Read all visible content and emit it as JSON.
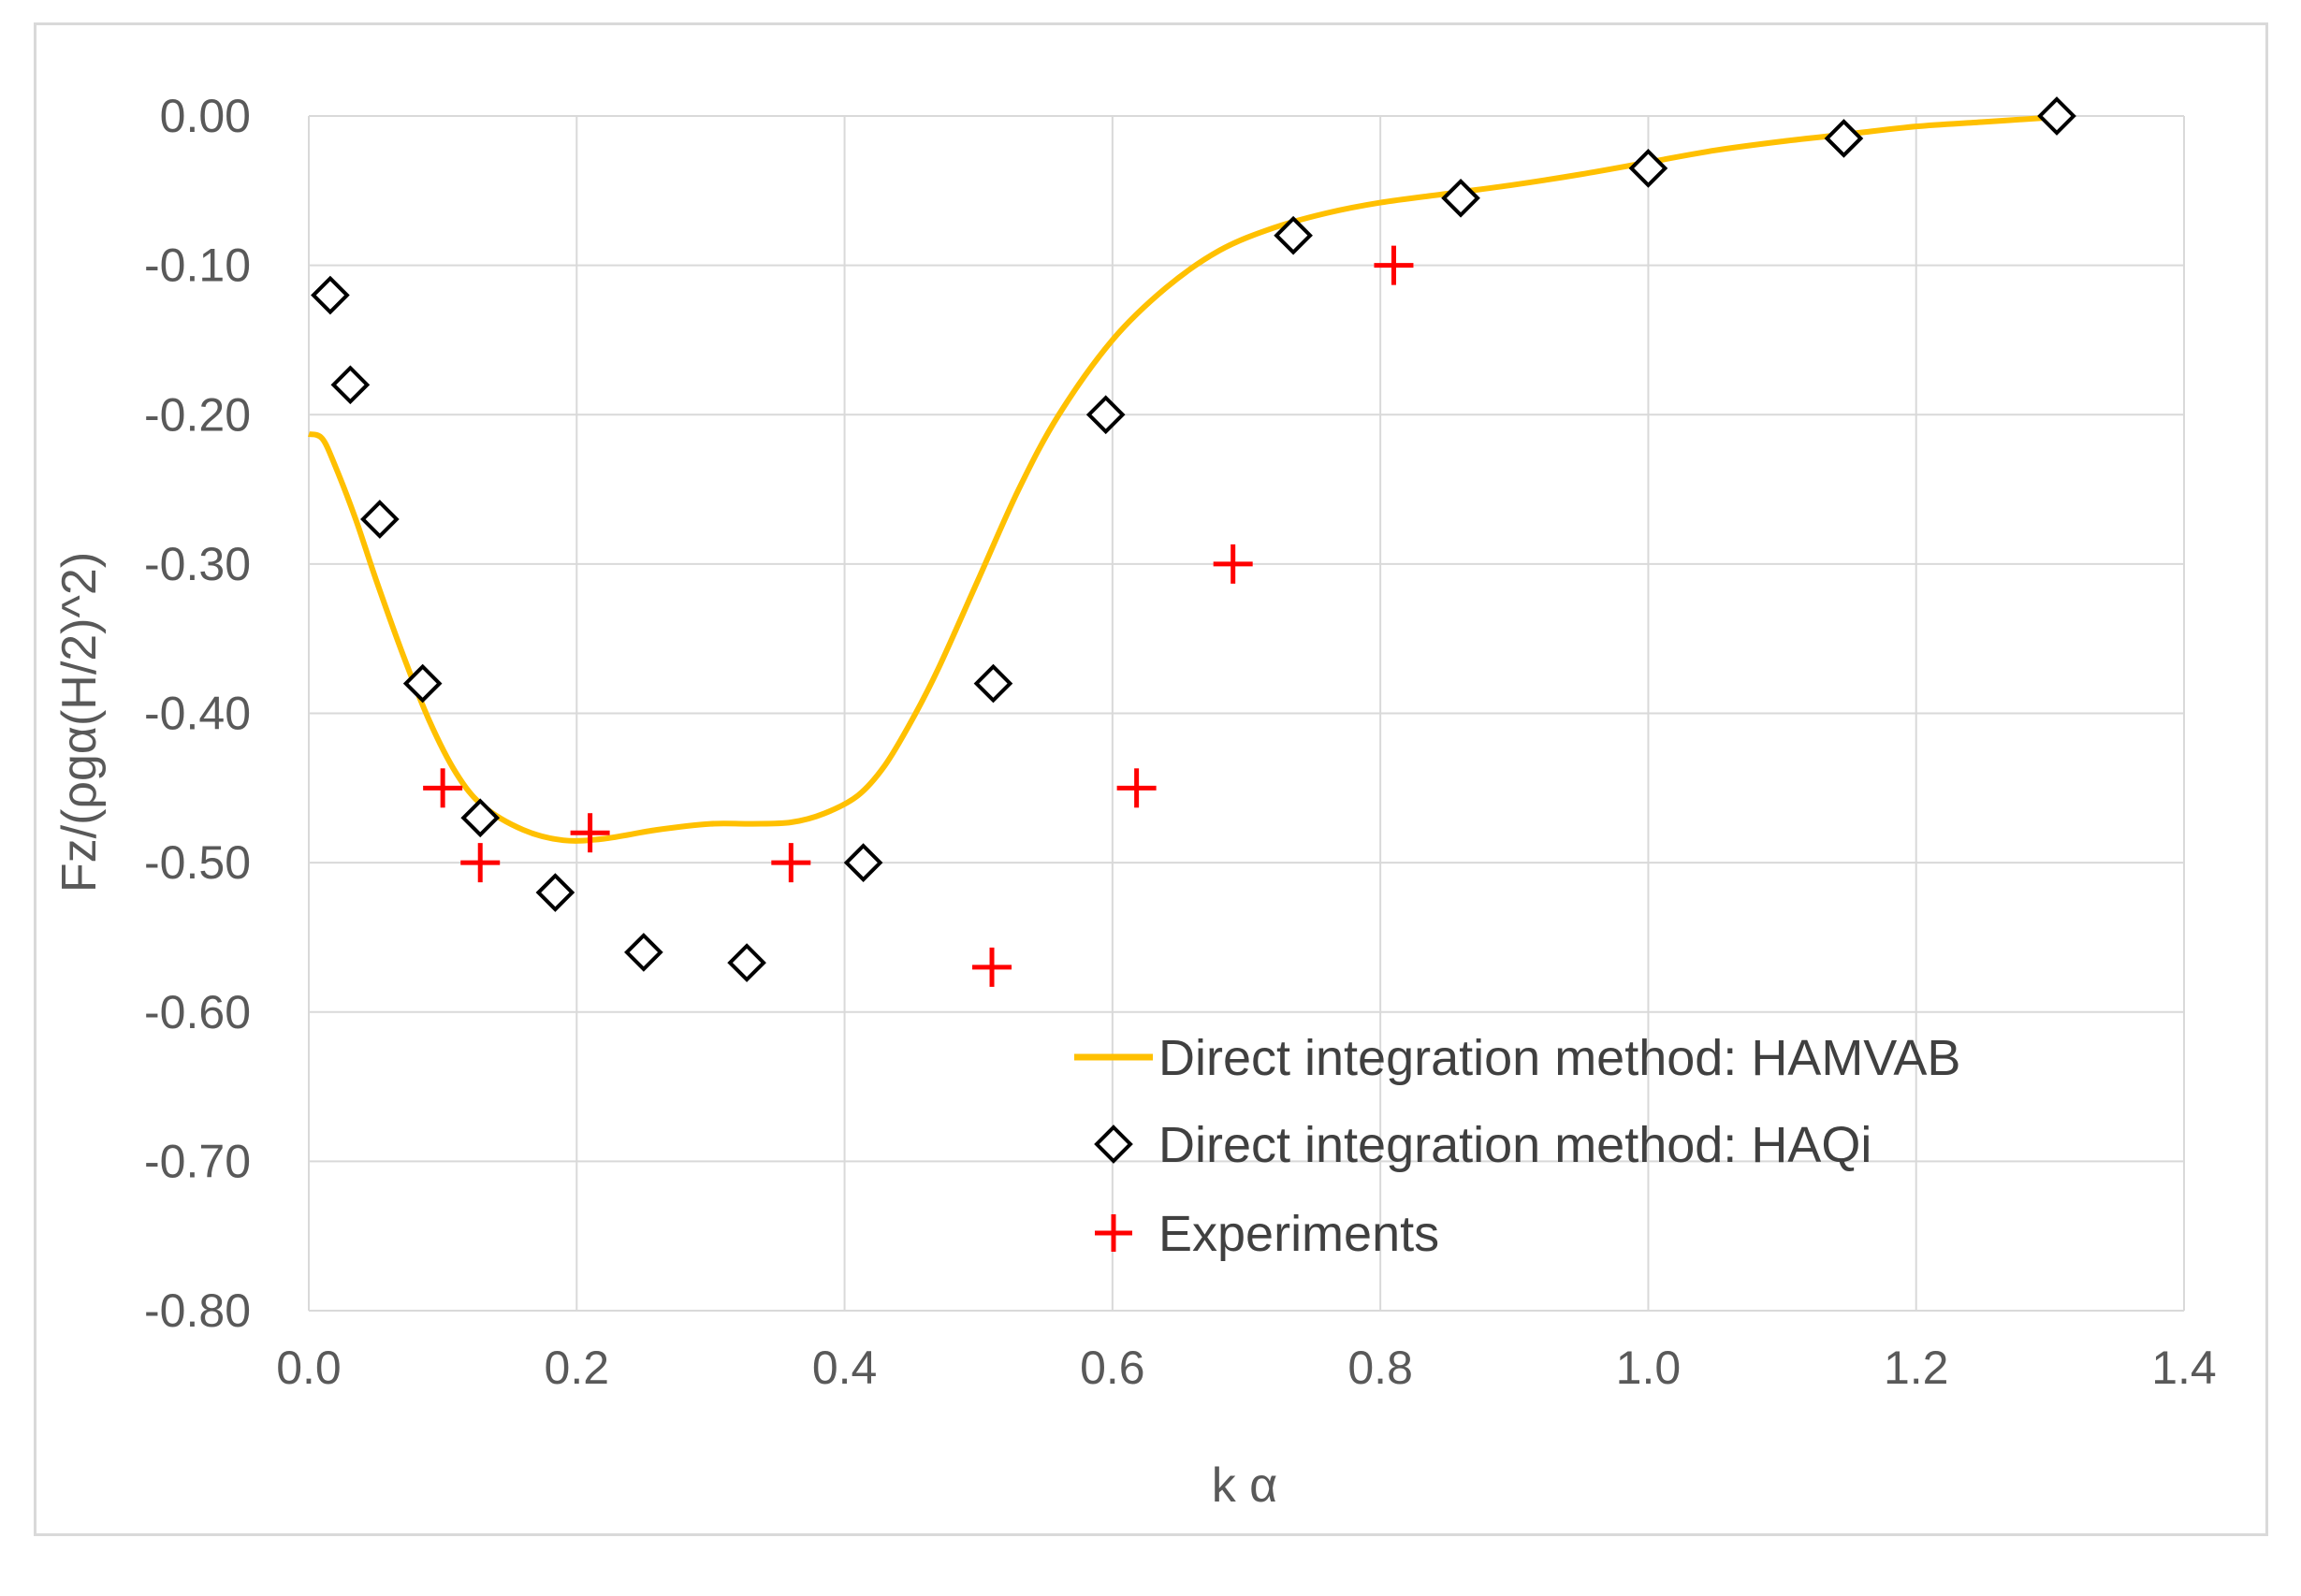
{
  "chart_data": {
    "type": "scatter",
    "title": "",
    "xlabel": "k α",
    "ylabel": "Fz/(ρgα(H/2)^2)",
    "xlim": [
      0.0,
      1.4
    ],
    "ylim": [
      -0.8,
      0.0
    ],
    "grid": true,
    "legend_position": "bottom-right",
    "x_ticks": [
      "0.0",
      "0.2",
      "0.4",
      "0.6",
      "0.8",
      "1.0",
      "1.2",
      "1.4"
    ],
    "y_ticks": [
      "0.00",
      "-0.10",
      "-0.20",
      "-0.30",
      "-0.40",
      "-0.50",
      "-0.60",
      "-0.70",
      "-0.80"
    ],
    "series": [
      {
        "name": "Direct integration method: HAMVAB",
        "kind": "line",
        "color": "#ffc000",
        "x": [
          0.0,
          0.01,
          0.02,
          0.035,
          0.05,
          0.07,
          0.09,
          0.11,
          0.13,
          0.16,
          0.19,
          0.22,
          0.26,
          0.3,
          0.33,
          0.36,
          0.385,
          0.41,
          0.43,
          0.45,
          0.47,
          0.5,
          0.53,
          0.56,
          0.6,
          0.64,
          0.68,
          0.72,
          0.76,
          0.8,
          0.85,
          0.9,
          0.95,
          1.0,
          1.05,
          1.1,
          1.15,
          1.2,
          1.25,
          1.3
        ],
        "y": [
          -0.213,
          -0.216,
          -0.235,
          -0.27,
          -0.31,
          -0.36,
          -0.405,
          -0.44,
          -0.462,
          -0.478,
          -0.485,
          -0.484,
          -0.478,
          -0.474,
          -0.474,
          -0.473,
          -0.467,
          -0.455,
          -0.435,
          -0.405,
          -0.37,
          -0.31,
          -0.25,
          -0.2,
          -0.15,
          -0.115,
          -0.09,
          -0.075,
          -0.065,
          -0.058,
          -0.052,
          -0.046,
          -0.039,
          -0.031,
          -0.023,
          -0.017,
          -0.012,
          -0.007,
          -0.004,
          -0.001
        ]
      },
      {
        "name": "Direct integration method: HAQi",
        "kind": "markers",
        "marker": "diamond",
        "color": "#000000",
        "x": [
          0.016,
          0.031,
          0.053,
          0.085,
          0.128,
          0.184,
          0.25,
          0.327,
          0.414,
          0.511,
          0.595,
          0.735,
          0.86,
          1.0,
          1.146,
          1.305
        ],
        "y": [
          -0.12,
          -0.18,
          -0.27,
          -0.38,
          -0.47,
          -0.52,
          -0.56,
          -0.567,
          -0.5,
          -0.38,
          -0.2,
          -0.08,
          -0.055,
          -0.035,
          -0.015,
          0.0
        ]
      },
      {
        "name": "Experiments",
        "kind": "markers",
        "marker": "plus",
        "color": "#ff0000",
        "x": [
          0.1,
          0.128,
          0.21,
          0.36,
          0.51,
          0.618,
          0.69,
          0.81
        ],
        "y": [
          -0.45,
          -0.5,
          -0.48,
          -0.5,
          -0.57,
          -0.45,
          -0.3,
          -0.1
        ]
      }
    ]
  }
}
